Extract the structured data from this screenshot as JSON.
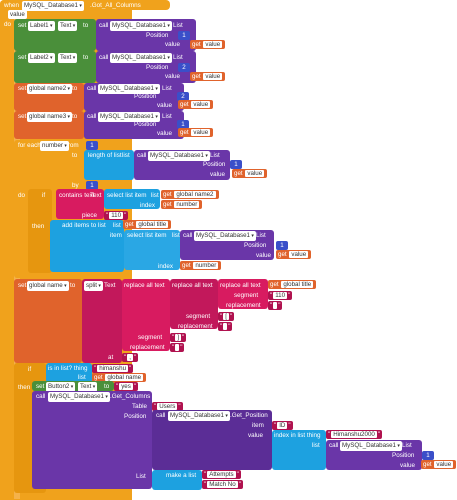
{
  "event": {
    "when": "when",
    "component": "MySQL_Database1",
    "event_name": ".Got_All_Columns",
    "param": "value"
  },
  "kw": {
    "do": "do",
    "set": "set",
    "to": "to",
    "call": "call",
    "get": "get",
    "list": "List",
    "position": "Position",
    "value": "value",
    "text": "Text",
    "index": "index",
    "piece": "piece",
    "segment": "segment",
    "replacement": "replacement",
    "by": "by",
    "if": "if",
    "then": "then",
    "item": "item",
    "at": "at",
    "from": "from",
    "thing": "thing",
    "table": "Table",
    "list2": "list"
  },
  "blocks": {
    "label1": "Label1",
    "label2": "Label2",
    "db": "MySQL_Database1",
    "num1": "1",
    "num2": "2",
    "num1b": "1",
    "num2b": "2",
    "num1c": "1",
    "num1d": "1",
    "global_name2": "global name2",
    "global_name3": "global name3",
    "foreach": "for each",
    "number": "number",
    "from": "from",
    "length_of_list": "length of list",
    "list_kw": "list",
    "contains_text": "contains text",
    "select_list_item": "select list item",
    "global_name2_get": "global name2",
    "number_get": "number",
    "val_110": "110",
    "add_items": "add items to list",
    "global_title": "global title",
    "item": "item",
    "global_name": "global name",
    "split": "split",
    "replace_all_text": "replace all text",
    "seg_110": "110",
    "rep_empty": "",
    "seg_bracket": "[",
    "rep_empty2": "",
    "seg_bracket2": "]",
    "rep_empty3": "",
    "at_comma": ",",
    "is_in_list": "is in list? thing",
    "himanshu": "himanshu",
    "global_name_list": "global name",
    "button2": "Button2",
    "yes": "yes",
    "get_columns": ".Get_Columns",
    "table_val": "Users",
    "get_position": ".Get_Position",
    "tag": "ID",
    "index_in_list": "index in list thing",
    "himanshu2000": "Himanshu2000",
    "make_list": "make a list",
    "attempts": "Attempts",
    "match_no": "Match No"
  }
}
